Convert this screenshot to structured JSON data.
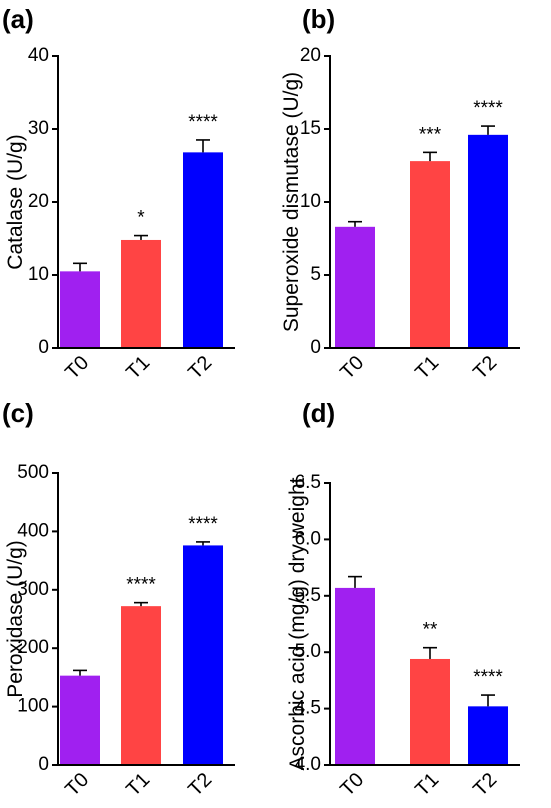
{
  "chart_data": [
    {
      "type": "bar",
      "panel": "(a)",
      "ylabel": "Catalase (U/g)",
      "categories": [
        "T0",
        "T1",
        "T2"
      ],
      "values": [
        10.5,
        14.8,
        26.8
      ],
      "errors": [
        1.1,
        0.6,
        1.7
      ],
      "significance": [
        "",
        "*",
        "****"
      ],
      "ylim": [
        0,
        40
      ],
      "yticks": [
        "0",
        "10",
        "20",
        "30",
        "40"
      ],
      "colors": [
        "#A020F0",
        "#FF4444",
        "#0000FF"
      ],
      "grid": false
    },
    {
      "type": "bar",
      "panel": "(b)",
      "ylabel": "Superoxide dismutase (U/g)",
      "categories": [
        "T0",
        "T1",
        "T2"
      ],
      "values": [
        8.3,
        12.8,
        14.6
      ],
      "errors": [
        0.35,
        0.6,
        0.6
      ],
      "significance": [
        "",
        "***",
        "****"
      ],
      "ylim": [
        0,
        20
      ],
      "yticks": [
        "0",
        "5",
        "10",
        "15",
        "20"
      ],
      "colors": [
        "#A020F0",
        "#FF4444",
        "#0000FF"
      ],
      "grid": false
    },
    {
      "type": "bar",
      "panel": "(c)",
      "ylabel": "Peroxidase (U/g)",
      "categories": [
        "T0",
        "T1",
        "T2"
      ],
      "values": [
        153,
        272,
        376
      ],
      "errors": [
        9,
        6,
        6
      ],
      "significance": [
        "",
        "****",
        "****"
      ],
      "ylim": [
        0,
        500
      ],
      "yticks": [
        "0",
        "100",
        "200",
        "300",
        "400",
        "500"
      ],
      "colors": [
        "#A020F0",
        "#FF4444",
        "#0000FF"
      ],
      "grid": false
    },
    {
      "type": "bar",
      "panel": "(d)",
      "ylabel": "Ascorbic acid (mg/g) dry weight",
      "categories": [
        "T0",
        "T1",
        "T2"
      ],
      "values": [
        5.57,
        4.94,
        4.52
      ],
      "errors": [
        0.1,
        0.1,
        0.1
      ],
      "significance": [
        "",
        "**",
        "****"
      ],
      "ylim": [
        4.0,
        6.5
      ],
      "yticks": [
        "4.0",
        "4.5",
        "5.0",
        "5.5",
        "6.0",
        "6.5"
      ],
      "colors": [
        "#A020F0",
        "#FF4444",
        "#0000FF"
      ],
      "grid": false
    }
  ]
}
